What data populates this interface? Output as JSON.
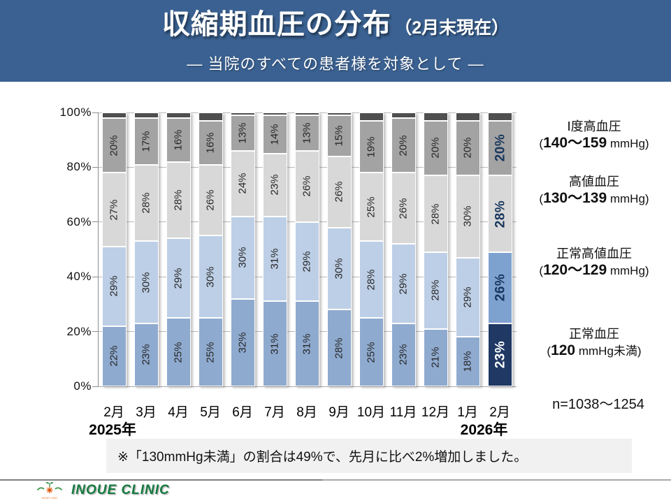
{
  "header": {
    "title": "収縮期血圧の分布",
    "title_paren": "（2月末現在）",
    "subtitle": "―  当院のすべての患者様を対象として  ―"
  },
  "chart_data": {
    "type": "bar",
    "stacked": true,
    "title": "収縮期血圧の分布（2月末現在）",
    "categories": [
      "2月",
      "3月",
      "4月",
      "5月",
      "6月",
      "7月",
      "8月",
      "9月",
      "10月",
      "11月",
      "12月",
      "1月",
      "2月"
    ],
    "series": [
      {
        "name": "正常血圧 (120 mmHg未満)",
        "values": [
          22,
          23,
          25,
          25,
          32,
          31,
          31,
          28,
          25,
          23,
          21,
          18,
          23
        ]
      },
      {
        "name": "正常高値血圧 (120～129 mmHg)",
        "values": [
          29,
          30,
          29,
          30,
          30,
          31,
          29,
          30,
          28,
          29,
          28,
          29,
          26
        ]
      },
      {
        "name": "高値血圧 (130～139 mmHg)",
        "values": [
          27,
          28,
          28,
          26,
          24,
          23,
          26,
          26,
          25,
          26,
          28,
          30,
          28
        ]
      },
      {
        "name": "Ⅰ度高血圧 (140～159 mmHg)",
        "values": [
          20,
          17,
          16,
          16,
          13,
          14,
          13,
          15,
          19,
          20,
          20,
          20,
          20
        ]
      }
    ],
    "remainder_values": [
      2,
      2,
      2,
      3,
      1,
      1,
      1,
      1,
      3,
      2,
      3,
      3,
      3
    ],
    "ylim": [
      0,
      100
    ],
    "yticks": [
      0,
      20,
      40,
      60,
      80,
      100
    ],
    "ytick_suffix": "%",
    "grid": true,
    "highlight_index": 12,
    "x_axis_years": {
      "left": "2025年",
      "right": "2026年"
    },
    "legend_position": "right",
    "legend": [
      {
        "title": "Ⅰ度高血圧",
        "value_bold": "140～159",
        "value_tail": " mmHg)"
      },
      {
        "title": "高値血圧",
        "value_bold": "130～139",
        "value_tail": " mmHg)"
      },
      {
        "title": "正常高値血圧",
        "value_bold": "120～129",
        "value_tail": " mmHg)"
      },
      {
        "title": "正常血圧",
        "value_bold": "120",
        "value_tail": " mmHg未満)"
      }
    ],
    "sample_size": "n=1038～1254",
    "colors": {
      "series": [
        "#8FAACF",
        "#BDCFE6",
        "#D8D8D8",
        "#A3A3A3"
      ],
      "remainder": "#4F4F4F",
      "highlight_series": [
        "#1F3864",
        "#7EA2D0",
        "#D8D8D8",
        "#A3A3A3"
      ],
      "label": "#262626",
      "highlight_label": "#17365D",
      "highlight_bottom_label": "#FFFFFF",
      "header_background": "#3A6191"
    }
  },
  "note": {
    "text": "※「130mmHg未満」の割合は49%で、先月に比べ2%増加しました。"
  },
  "footer": {
    "clinic_name": "INOUE CLINIC",
    "logo_text": "INOUE CLINIC"
  }
}
